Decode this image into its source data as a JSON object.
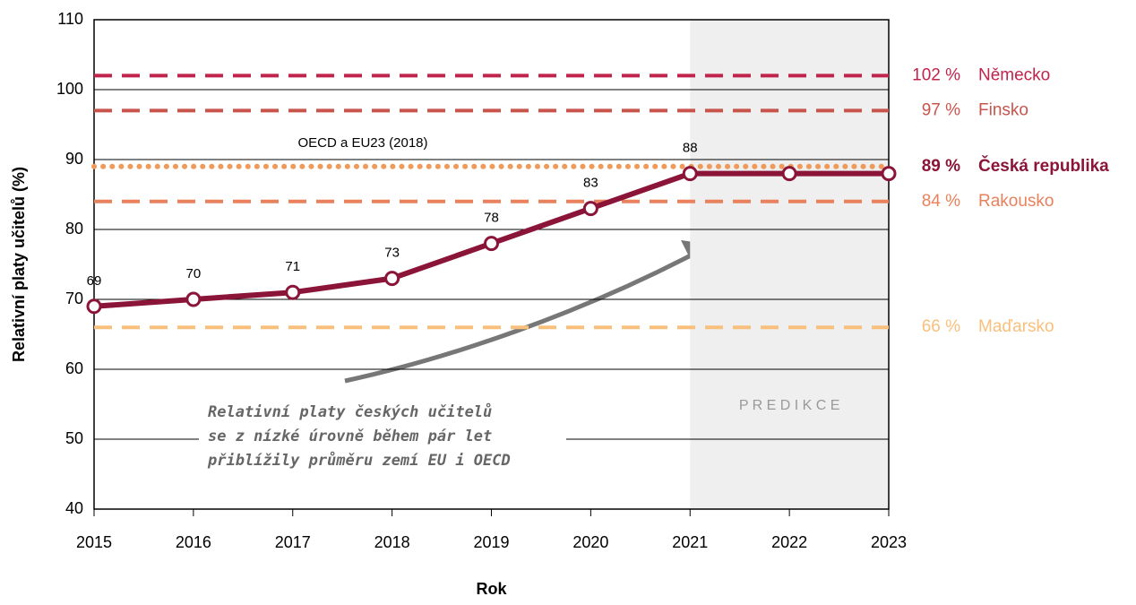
{
  "chart_data": {
    "type": "line",
    "y_label": "Relativní platy učitelů (%)",
    "x_label": "Rok",
    "x": [
      2015,
      2016,
      2017,
      2018,
      2019,
      2020,
      2021,
      2022,
      2023
    ],
    "xlim": [
      2015,
      2023
    ],
    "xticks": [
      2015,
      2016,
      2017,
      2018,
      2019,
      2020,
      2021,
      2022,
      2023
    ],
    "ylim": [
      40,
      110
    ],
    "yticks": [
      40,
      50,
      60,
      70,
      80,
      90,
      100,
      110
    ],
    "grid": true,
    "series": [
      {
        "name": "Česká republika",
        "color": "#8b1538",
        "values": [
          69,
          70,
          71,
          73,
          78,
          83,
          88,
          88,
          88
        ],
        "value_labels": [
          "69",
          "70",
          "71",
          "73",
          "78",
          "83",
          "88",
          null,
          null
        ]
      }
    ],
    "reference_lines": [
      {
        "name": "Německo",
        "value": 102,
        "value_label": "102 %",
        "color": "#c0244c",
        "style": "dashed"
      },
      {
        "name": "Finsko",
        "value": 97,
        "value_label": "97 %",
        "color": "#c8544c",
        "style": "dashed"
      },
      {
        "name": "Česká republika",
        "value": 89,
        "value_label": "89 %",
        "color": "#f09a5a",
        "label_color": "#8b1538",
        "style": "dotted",
        "bold": true
      },
      {
        "name": "Rakousko",
        "value": 84,
        "value_label": "84 %",
        "color": "#e8815c",
        "style": "dashed"
      },
      {
        "name": "Maďarsko",
        "value": 66,
        "value_label": "66 %",
        "color": "#f8c07c",
        "style": "dashed"
      }
    ],
    "reference_note": "OECD a EU23 (2018)",
    "shaded_from": 2021,
    "shaded_label": "P R E D I K C E",
    "annotation": [
      "Relativní platy českých učitelů",
      "se z nízké úrovně během pár let",
      "přiblížily průměru zemí EU i OECD"
    ]
  }
}
